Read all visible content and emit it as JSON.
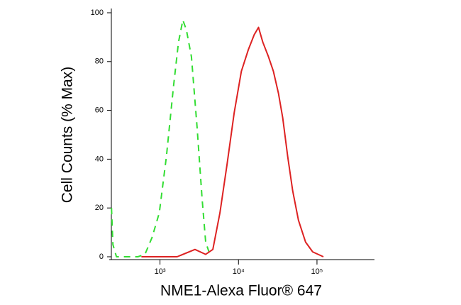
{
  "chart_data": {
    "type": "line",
    "x_label": "NME1-Alexa Fluor® 647",
    "y_label": "Cell Counts (% Max)",
    "xscale": "log",
    "xlim": [
      240,
      540000
    ],
    "ylim": [
      0,
      100
    ],
    "xticks": [
      {
        "value": 1000,
        "label": "10³"
      },
      {
        "value": 10000,
        "label": "10⁴"
      },
      {
        "value": 100000,
        "label": "10⁵"
      }
    ],
    "yticks": [
      0,
      20,
      40,
      60,
      80,
      100
    ],
    "series": [
      {
        "color": "#33dd33",
        "dashed": true,
        "x": [
          241,
          251,
          279,
          522,
          644,
          794,
          979,
          1207,
          1489,
          1722,
          1954,
          2168,
          2512,
          2970,
          3438,
          3818,
          4416
        ],
        "values": [
          20,
          5,
          0,
          0,
          1,
          8,
          18,
          41,
          70,
          88,
          97,
          93,
          82,
          53,
          24,
          6,
          0
        ]
      },
      {
        "color": "#dd2222",
        "dashed": false,
        "x": [
          580,
          1652,
          2787,
          3818,
          4710,
          5807,
          7157,
          8816,
          10870,
          13400,
          15850,
          17980,
          20380,
          24100,
          27870,
          32280,
          36610,
          42380,
          49090,
          58070,
          71580,
          88190,
          120800
        ],
        "values": [
          0,
          0,
          3,
          1,
          3,
          18,
          38,
          59,
          76,
          85,
          91,
          94,
          88,
          82,
          76,
          67,
          57,
          41,
          27,
          15,
          6,
          2,
          0
        ]
      }
    ]
  }
}
